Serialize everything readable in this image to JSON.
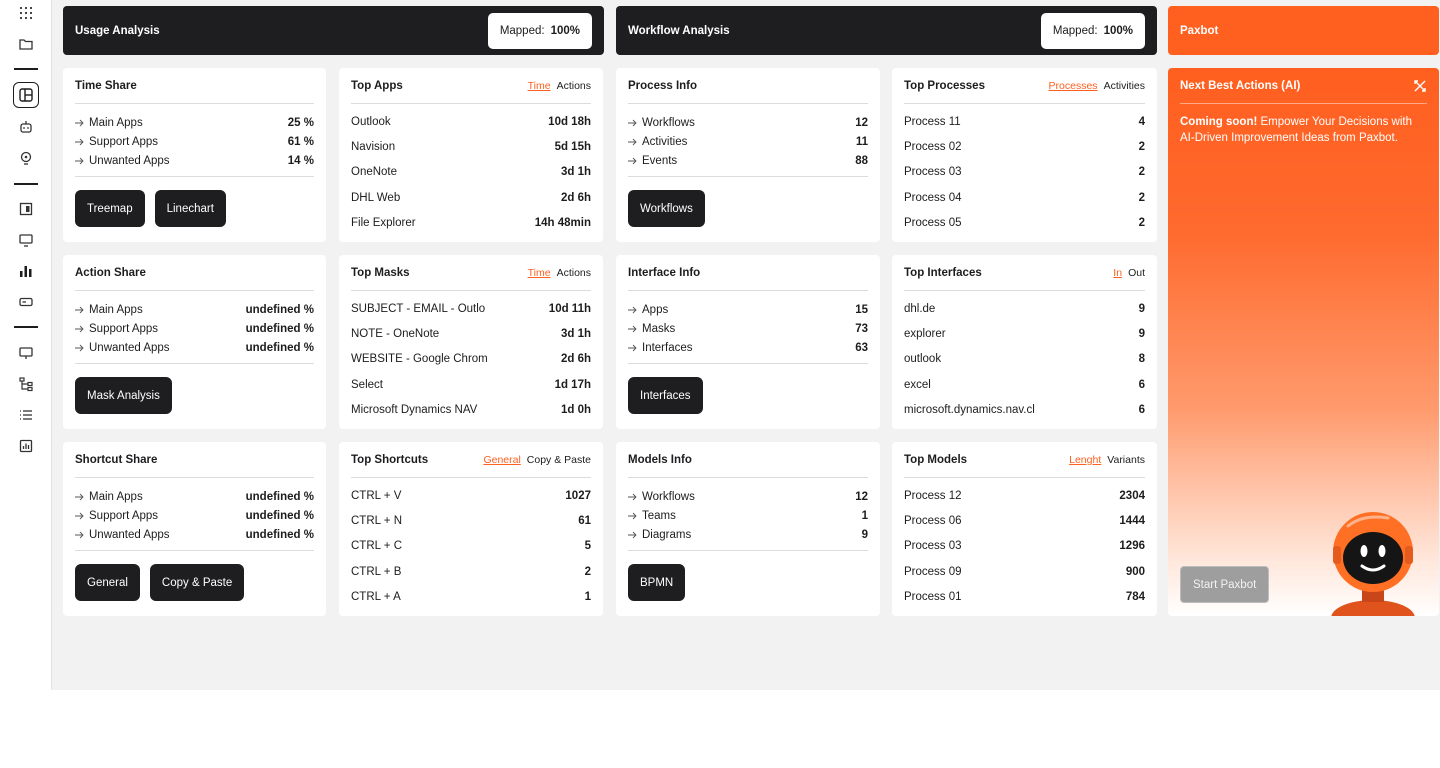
{
  "sidebar": {
    "icons": [
      "grid-dots-icon",
      "folder-icon",
      "layout-icon",
      "robot-icon",
      "lightbulb-icon",
      "dashboard-icon",
      "monitor-icon",
      "bar-chart-icon",
      "card-icon",
      "screen-icon",
      "flow-icon",
      "list-icon",
      "report-icon"
    ]
  },
  "headers": {
    "usage": {
      "title": "Usage Analysis",
      "mapped_label": "Mapped:",
      "mapped_value": "100%"
    },
    "workflow": {
      "title": "Workflow Analysis",
      "mapped_label": "Mapped:",
      "mapped_value": "100%"
    },
    "paxbot": {
      "title": "Paxbot"
    }
  },
  "time_share": {
    "title": "Time Share",
    "rows": [
      {
        "label": "Main Apps",
        "value": "25 %"
      },
      {
        "label": "Support Apps",
        "value": "61 %"
      },
      {
        "label": "Unwanted Apps",
        "value": "14 %"
      }
    ],
    "buttons": [
      "Treemap",
      "Linechart"
    ]
  },
  "action_share": {
    "title": "Action Share",
    "rows": [
      {
        "label": "Main Apps",
        "value": "undefined %"
      },
      {
        "label": "Support Apps",
        "value": "undefined %"
      },
      {
        "label": "Unwanted Apps",
        "value": "undefined %"
      }
    ],
    "buttons": [
      "Mask Analysis"
    ]
  },
  "shortcut_share": {
    "title": "Shortcut Share",
    "rows": [
      {
        "label": "Main Apps",
        "value": "undefined %"
      },
      {
        "label": "Support Apps",
        "value": "undefined %"
      },
      {
        "label": "Unwanted Apps",
        "value": "undefined %"
      }
    ],
    "buttons": [
      "General",
      "Copy & Paste"
    ]
  },
  "top_apps": {
    "title": "Top Apps",
    "toggle_on": "Time",
    "toggle_off": "Actions",
    "rows": [
      {
        "label": "Outlook",
        "value": "10d 18h"
      },
      {
        "label": "Navision",
        "value": "5d 15h"
      },
      {
        "label": "OneNote",
        "value": "3d 1h"
      },
      {
        "label": "DHL Web",
        "value": "2d 6h"
      },
      {
        "label": "File Explorer",
        "value": "14h 48min"
      }
    ]
  },
  "top_masks": {
    "title": "Top Masks",
    "toggle_on": "Time",
    "toggle_off": "Actions",
    "rows": [
      {
        "label": "SUBJECT - EMAIL - Outlo",
        "value": "10d 11h"
      },
      {
        "label": "NOTE - OneNote",
        "value": "3d 1h"
      },
      {
        "label": "WEBSITE - Google Chrom",
        "value": "2d 6h"
      },
      {
        "label": "Select",
        "value": "1d 17h"
      },
      {
        "label": "Microsoft Dynamics NAV",
        "value": "1d 0h"
      }
    ]
  },
  "top_shortcuts": {
    "title": "Top Shortcuts",
    "toggle_on": "General",
    "toggle_off": "Copy & Paste",
    "rows": [
      {
        "label": "CTRL + V",
        "value": "1027"
      },
      {
        "label": "CTRL + N",
        "value": "61"
      },
      {
        "label": "CTRL + C",
        "value": "5"
      },
      {
        "label": "CTRL + B",
        "value": "2"
      },
      {
        "label": "CTRL + A",
        "value": "1"
      }
    ]
  },
  "process_info": {
    "title": "Process Info",
    "rows": [
      {
        "label": "Workflows",
        "value": "12"
      },
      {
        "label": "Activities",
        "value": "11"
      },
      {
        "label": "Events",
        "value": "88"
      }
    ],
    "buttons": [
      "Workflows"
    ]
  },
  "interface_info": {
    "title": "Interface Info",
    "rows": [
      {
        "label": "Apps",
        "value": "15"
      },
      {
        "label": "Masks",
        "value": "73"
      },
      {
        "label": "Interfaces",
        "value": "63"
      }
    ],
    "buttons": [
      "Interfaces"
    ]
  },
  "models_info": {
    "title": "Models Info",
    "rows": [
      {
        "label": "Workflows",
        "value": "12"
      },
      {
        "label": "Teams",
        "value": "1"
      },
      {
        "label": "Diagrams",
        "value": "9"
      }
    ],
    "buttons": [
      "BPMN"
    ]
  },
  "top_processes": {
    "title": "Top Processes",
    "toggle_on": "Processes",
    "toggle_off": "Activities",
    "rows": [
      {
        "label": "Process 11",
        "value": "4"
      },
      {
        "label": "Process 02",
        "value": "2"
      },
      {
        "label": "Process 03",
        "value": "2"
      },
      {
        "label": "Process 04",
        "value": "2"
      },
      {
        "label": "Process 05",
        "value": "2"
      }
    ]
  },
  "top_interfaces": {
    "title": "Top Interfaces",
    "toggle_on": "In",
    "toggle_off": "Out",
    "rows": [
      {
        "label": "dhl.de",
        "value": "9"
      },
      {
        "label": "explorer",
        "value": "9"
      },
      {
        "label": "outlook",
        "value": "8"
      },
      {
        "label": "excel",
        "value": "6"
      },
      {
        "label": "microsoft.dynamics.nav.cl",
        "value": "6"
      }
    ]
  },
  "top_models": {
    "title": "Top Models",
    "toggle_on": "Lenght",
    "toggle_off": "Variants",
    "rows": [
      {
        "label": "Process 12",
        "value": "2304"
      },
      {
        "label": "Process 06",
        "value": "1444"
      },
      {
        "label": "Process 03",
        "value": "1296"
      },
      {
        "label": "Process 09",
        "value": "900"
      },
      {
        "label": "Process 01",
        "value": "784"
      }
    ]
  },
  "ai": {
    "title": "Next Best Actions (AI)",
    "lead": "Coming soon!",
    "text": " Empower Your Decisions with AI-Driven Improvement Ideas from Paxbot.",
    "button": "Start Paxbot"
  },
  "colors": {
    "accent": "#ff5f1f",
    "dark": "#1e1e20",
    "background": "#f2f2f2"
  }
}
